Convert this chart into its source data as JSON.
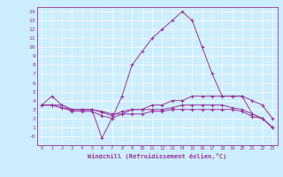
{
  "xlabel": "Windchill (Refroidissement éolien,°C)",
  "background_color": "#cceeff",
  "line_color": "#993399",
  "xlim": [
    -0.5,
    23.5
  ],
  "ylim": [
    -1.0,
    14.5
  ],
  "xticks": [
    0,
    1,
    2,
    3,
    4,
    5,
    6,
    7,
    8,
    9,
    10,
    11,
    12,
    13,
    14,
    15,
    16,
    17,
    18,
    19,
    20,
    21,
    22,
    23
  ],
  "yticks": [
    0,
    1,
    2,
    3,
    4,
    5,
    6,
    7,
    8,
    9,
    10,
    11,
    12,
    13,
    14
  ],
  "lines": [
    {
      "x": [
        0,
        1,
        2,
        3,
        4,
        5,
        6,
        7,
        8,
        9,
        10,
        11,
        12,
        13,
        14,
        15,
        16,
        17,
        18,
        19,
        20,
        21,
        22,
        23
      ],
      "y": [
        3.5,
        4.5,
        3.5,
        3.0,
        3.0,
        3.0,
        -0.2,
        2.0,
        4.5,
        8.0,
        9.5,
        11.0,
        12.0,
        13.0,
        14.0,
        13.0,
        10.0,
        7.0,
        4.5,
        4.5,
        4.5,
        4.0,
        3.5,
        2.0
      ]
    },
    {
      "x": [
        0,
        1,
        2,
        3,
        4,
        5,
        6,
        7,
        8,
        9,
        10,
        11,
        12,
        13,
        14,
        15,
        16,
        17,
        18,
        19,
        20,
        21,
        22,
        23
      ],
      "y": [
        3.5,
        3.5,
        3.5,
        3.0,
        3.0,
        3.0,
        2.8,
        2.5,
        2.5,
        3.0,
        3.0,
        3.5,
        3.5,
        4.0,
        4.0,
        4.5,
        4.5,
        4.5,
        4.5,
        4.5,
        4.5,
        2.5,
        2.0,
        1.0
      ]
    },
    {
      "x": [
        0,
        1,
        2,
        3,
        4,
        5,
        6,
        7,
        8,
        9,
        10,
        11,
        12,
        13,
        14,
        15,
        16,
        17,
        18,
        19,
        20,
        21,
        22,
        23
      ],
      "y": [
        3.5,
        3.5,
        3.2,
        3.0,
        3.0,
        3.0,
        2.7,
        2.3,
        2.8,
        3.0,
        3.0,
        3.0,
        3.0,
        3.2,
        3.5,
        3.5,
        3.5,
        3.5,
        3.5,
        3.2,
        3.0,
        2.5,
        2.0,
        1.0
      ]
    },
    {
      "x": [
        0,
        1,
        2,
        3,
        4,
        5,
        6,
        7,
        8,
        9,
        10,
        11,
        12,
        13,
        14,
        15,
        16,
        17,
        18,
        19,
        20,
        21,
        22,
        23
      ],
      "y": [
        3.5,
        3.5,
        3.2,
        2.8,
        2.8,
        2.8,
        2.3,
        2.0,
        2.5,
        2.5,
        2.5,
        2.8,
        2.8,
        3.0,
        3.0,
        3.0,
        3.0,
        3.0,
        3.0,
        3.0,
        2.8,
        2.2,
        2.0,
        1.0
      ]
    }
  ]
}
